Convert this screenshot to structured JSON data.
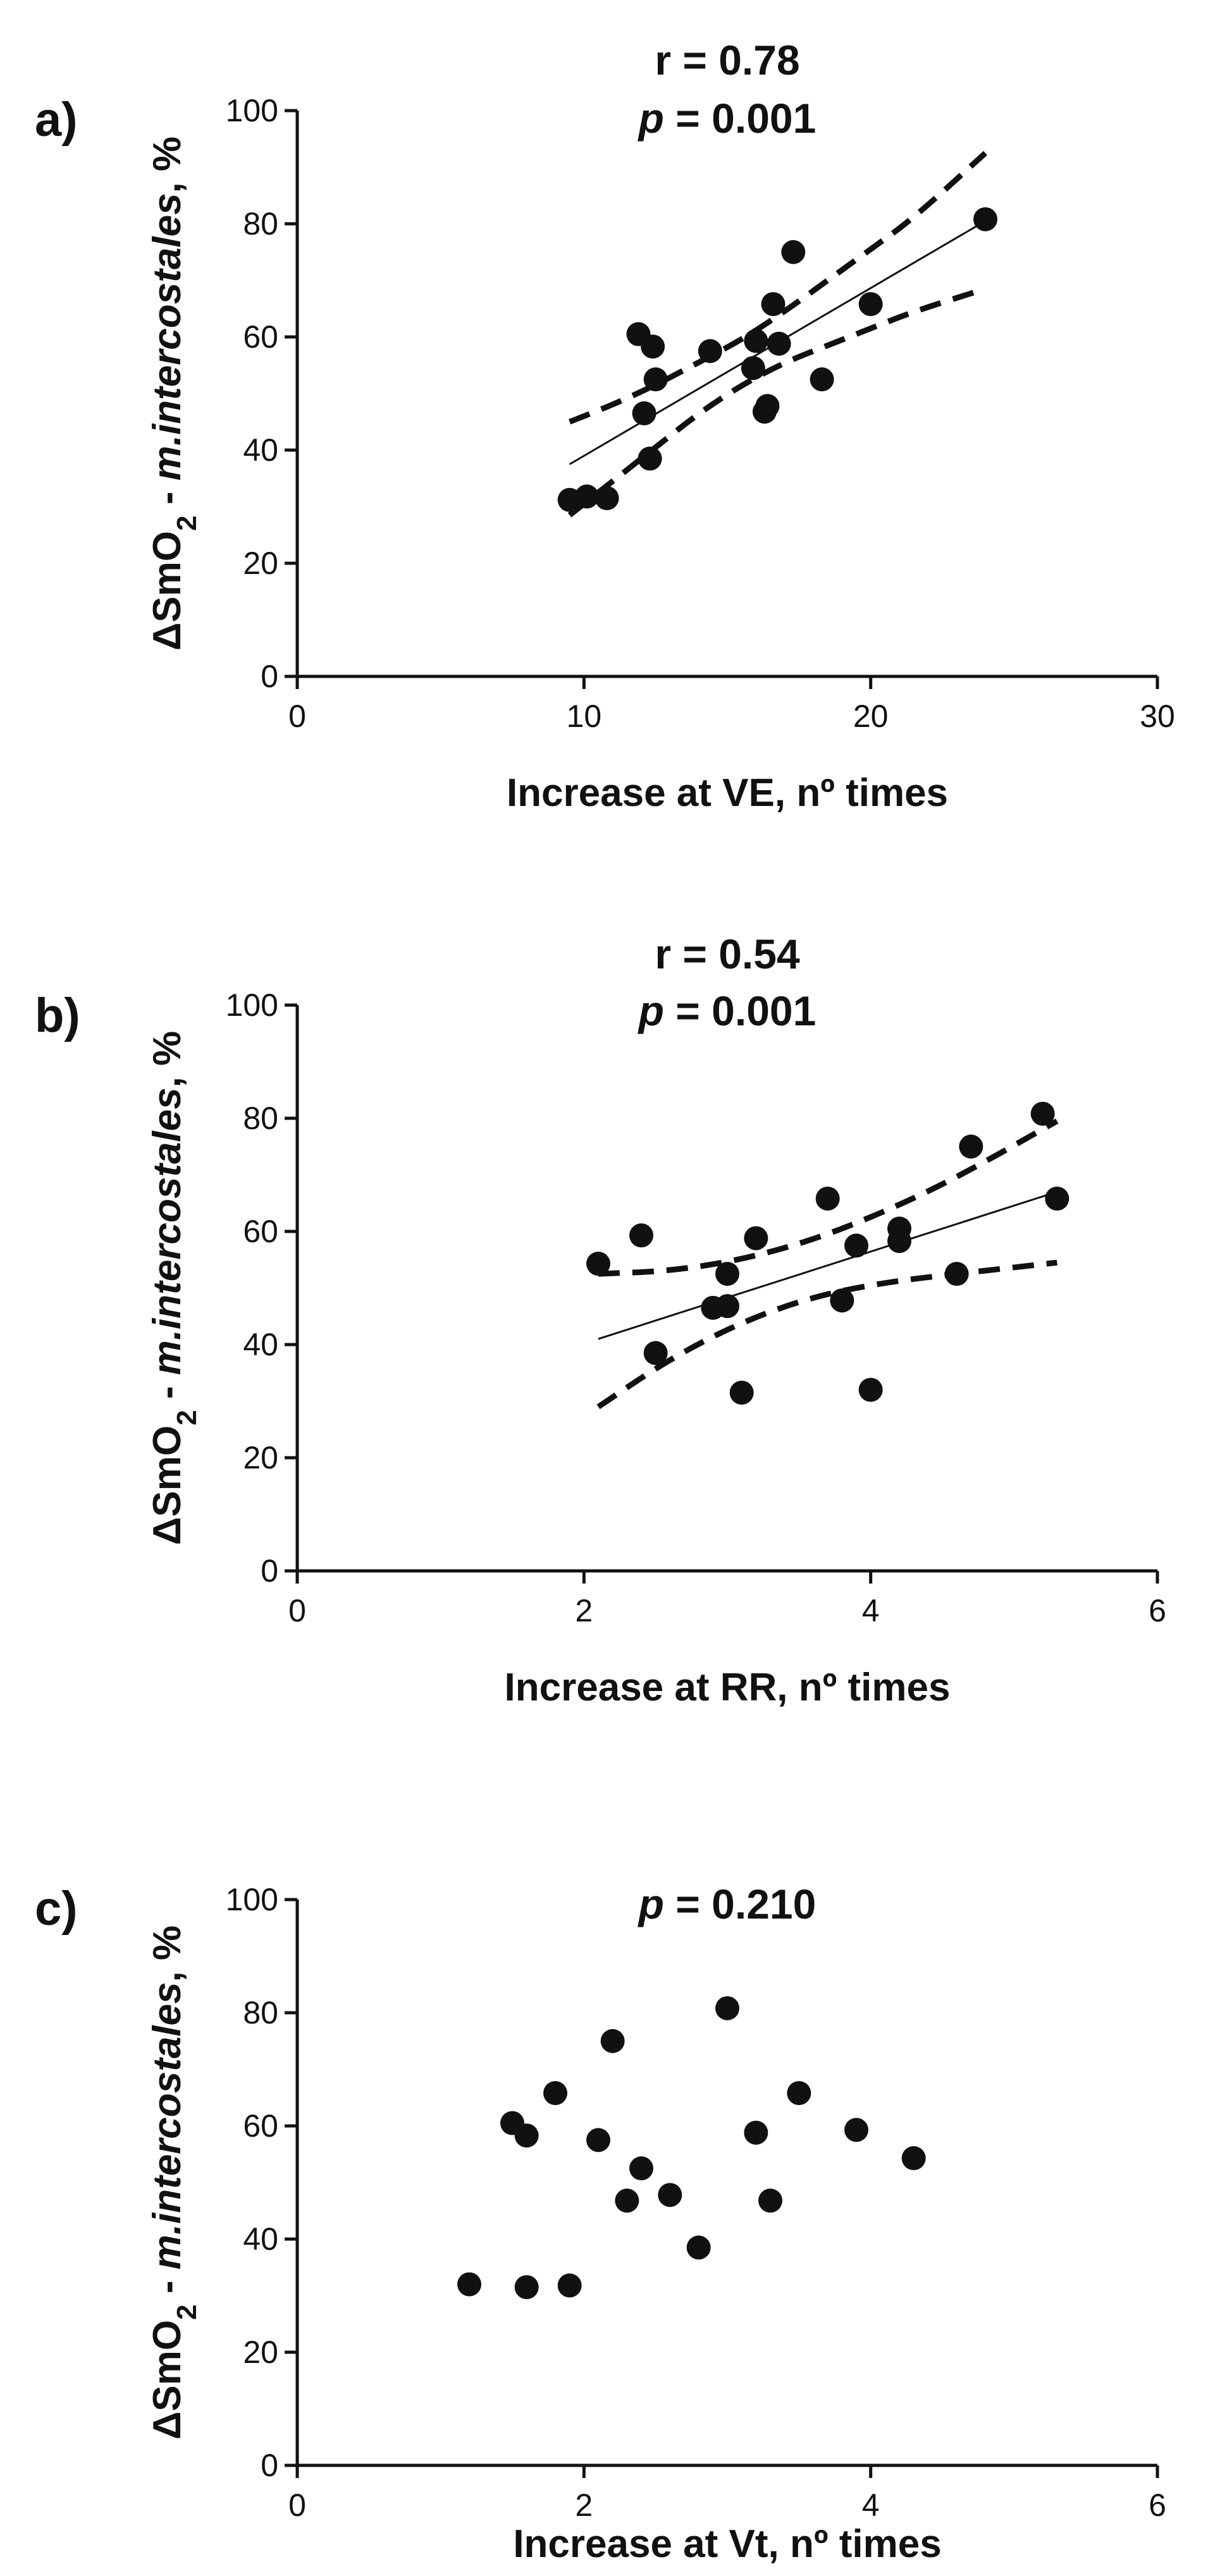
{
  "chart_data": [
    {
      "panel_label": "a)",
      "type": "scatter",
      "stat_r": "r = 0.78",
      "stat_p_symbol": "p",
      "stat_p_value": " = 0.001",
      "ylabel_prefix": "ΔSmO",
      "ylabel_sub": "2",
      "ylabel_middle": " - ",
      "ylabel_italic": "m.intercostales",
      "ylabel_suffix": ", %",
      "xlabel": "Increase at VE, nº times",
      "xlim": [
        0,
        30
      ],
      "ylim": [
        0,
        100
      ],
      "xticks": [
        0,
        10,
        20,
        30
      ],
      "yticks": [
        0,
        20,
        40,
        60,
        80,
        100
      ],
      "points": [
        {
          "x": 9.5,
          "y": 31.2
        },
        {
          "x": 10.1,
          "y": 31.8
        },
        {
          "x": 10.8,
          "y": 31.5
        },
        {
          "x": 11.9,
          "y": 60.5
        },
        {
          "x": 12.1,
          "y": 46.5
        },
        {
          "x": 12.3,
          "y": 38.5
        },
        {
          "x": 12.4,
          "y": 58.3
        },
        {
          "x": 12.5,
          "y": 52.5
        },
        {
          "x": 14.4,
          "y": 57.5
        },
        {
          "x": 15.9,
          "y": 54.5
        },
        {
          "x": 16.0,
          "y": 59.3
        },
        {
          "x": 16.3,
          "y": 46.8
        },
        {
          "x": 16.4,
          "y": 47.8
        },
        {
          "x": 16.6,
          "y": 65.8
        },
        {
          "x": 16.8,
          "y": 58.8
        },
        {
          "x": 17.3,
          "y": 75.0
        },
        {
          "x": 18.3,
          "y": 52.5
        },
        {
          "x": 20.0,
          "y": 65.8
        },
        {
          "x": 24.0,
          "y": 80.8
        }
      ],
      "fit": {
        "x": [
          9.5,
          24.0
        ],
        "y": [
          37.5,
          80.5
        ]
      },
      "ci_upper": {
        "x": [
          9.5,
          11,
          12.5,
          14,
          15.5,
          17,
          18.5,
          20,
          21.5,
          24.0
        ],
        "y": [
          45,
          48,
          51.5,
          55.5,
          59.5,
          64.5,
          70,
          75.5,
          81,
          92.5
        ]
      },
      "ci_lower": {
        "x": [
          9.5,
          11,
          12.5,
          14,
          15.5,
          17,
          18.5,
          20,
          21.5,
          24.0
        ],
        "y": [
          28.5,
          34.5,
          40.5,
          46.5,
          51.5,
          55.5,
          58.5,
          61.5,
          64.5,
          68.5
        ]
      }
    },
    {
      "panel_label": "b)",
      "type": "scatter",
      "stat_r": "r = 0.54",
      "stat_p_symbol": "p",
      "stat_p_value": " = 0.001",
      "ylabel_prefix": "ΔSmO",
      "ylabel_sub": "2",
      "ylabel_middle": " - ",
      "ylabel_italic": "m.intercostales",
      "ylabel_suffix": ", %",
      "xlabel": "Increase at RR, nº times",
      "xlim": [
        0,
        6
      ],
      "ylim": [
        0,
        100
      ],
      "xticks": [
        0,
        2,
        4,
        6
      ],
      "yticks": [
        0,
        20,
        40,
        60,
        80,
        100
      ],
      "points": [
        {
          "x": 2.1,
          "y": 54.3
        },
        {
          "x": 2.4,
          "y": 59.3
        },
        {
          "x": 2.5,
          "y": 38.5
        },
        {
          "x": 2.9,
          "y": 46.5
        },
        {
          "x": 3.0,
          "y": 46.8
        },
        {
          "x": 3.0,
          "y": 52.5
        },
        {
          "x": 3.1,
          "y": 31.5
        },
        {
          "x": 3.2,
          "y": 58.8
        },
        {
          "x": 3.7,
          "y": 65.8
        },
        {
          "x": 3.8,
          "y": 47.8
        },
        {
          "x": 3.9,
          "y": 57.5
        },
        {
          "x": 4.0,
          "y": 32.0
        },
        {
          "x": 4.2,
          "y": 60.5
        },
        {
          "x": 4.2,
          "y": 58.3
        },
        {
          "x": 4.6,
          "y": 52.5
        },
        {
          "x": 4.7,
          "y": 75.0
        },
        {
          "x": 5.2,
          "y": 80.8
        },
        {
          "x": 5.3,
          "y": 65.8
        }
      ],
      "fit": {
        "x": [
          2.1,
          5.3
        ],
        "y": [
          41.0,
          67.0
        ]
      },
      "ci_upper": {
        "x": [
          2.1,
          2.6,
          3.1,
          3.6,
          4.1,
          4.6,
          5.3
        ],
        "y": [
          52.5,
          53,
          55,
          58.5,
          63.5,
          69.5,
          79.5
        ]
      },
      "ci_lower": {
        "x": [
          2.1,
          2.6,
          3.1,
          3.6,
          4.1,
          4.6,
          5.3
        ],
        "y": [
          29,
          37.5,
          44,
          48.5,
          51,
          52.5,
          54.5
        ]
      }
    },
    {
      "panel_label": "c)",
      "type": "scatter",
      "stat_r": "",
      "stat_p_symbol": "p",
      "stat_p_value": " = 0.210",
      "ylabel_prefix": "ΔSmO",
      "ylabel_sub": "2",
      "ylabel_middle": " - ",
      "ylabel_italic": "m.intercostales",
      "ylabel_suffix": ", %",
      "xlabel": "Increase at Vt, nº times",
      "xlim": [
        0,
        6
      ],
      "ylim": [
        0,
        100
      ],
      "xticks": [
        0,
        2,
        4,
        6
      ],
      "yticks": [
        0,
        20,
        40,
        60,
        80,
        100
      ],
      "points": [
        {
          "x": 1.2,
          "y": 32.0
        },
        {
          "x": 1.5,
          "y": 60.5
        },
        {
          "x": 1.6,
          "y": 58.3
        },
        {
          "x": 1.6,
          "y": 31.5
        },
        {
          "x": 1.8,
          "y": 65.8
        },
        {
          "x": 1.9,
          "y": 31.8
        },
        {
          "x": 2.1,
          "y": 57.5
        },
        {
          "x": 2.2,
          "y": 75.0
        },
        {
          "x": 2.3,
          "y": 46.8
        },
        {
          "x": 2.4,
          "y": 52.5
        },
        {
          "x": 2.6,
          "y": 47.8
        },
        {
          "x": 2.8,
          "y": 38.5
        },
        {
          "x": 3.0,
          "y": 80.8
        },
        {
          "x": 3.2,
          "y": 58.8
        },
        {
          "x": 3.3,
          "y": 46.8
        },
        {
          "x": 3.5,
          "y": 65.8
        },
        {
          "x": 3.9,
          "y": 59.3
        },
        {
          "x": 4.3,
          "y": 54.3
        }
      ]
    }
  ]
}
